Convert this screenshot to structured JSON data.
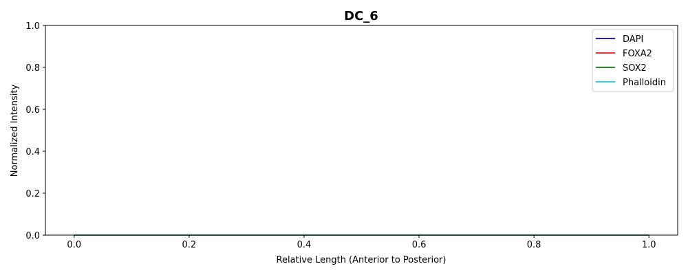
{
  "chart_data": {
    "type": "line",
    "title": "DC_6",
    "xlabel": "Relative Length (Anterior to Posterior)",
    "ylabel": "Normalized Intensity",
    "xlim": [
      -0.05,
      1.05
    ],
    "ylim": [
      0.0,
      1.0
    ],
    "xticks": [
      "0.0",
      "0.2",
      "0.4",
      "0.6",
      "0.8",
      "1.0"
    ],
    "yticks": [
      "0.0",
      "0.2",
      "0.4",
      "0.6",
      "0.8",
      "1.0"
    ],
    "grid": false,
    "legend_position": "top-right",
    "x": [
      0.0,
      0.2,
      0.4,
      0.6,
      0.8,
      1.0
    ],
    "series": [
      {
        "name": "DAPI",
        "color": "#0000bf",
        "values": [
          0,
          0,
          0,
          0,
          0,
          0
        ]
      },
      {
        "name": "FOXA2",
        "color": "#e41a1c",
        "values": [
          0,
          0,
          0,
          0,
          0,
          0
        ]
      },
      {
        "name": "SOX2",
        "color": "#008000",
        "values": [
          0,
          0,
          0,
          0,
          0,
          0
        ]
      },
      {
        "name": "Phalloidin",
        "color": "#17becf",
        "values": [
          0,
          0,
          0,
          0,
          0,
          0
        ]
      }
    ]
  }
}
